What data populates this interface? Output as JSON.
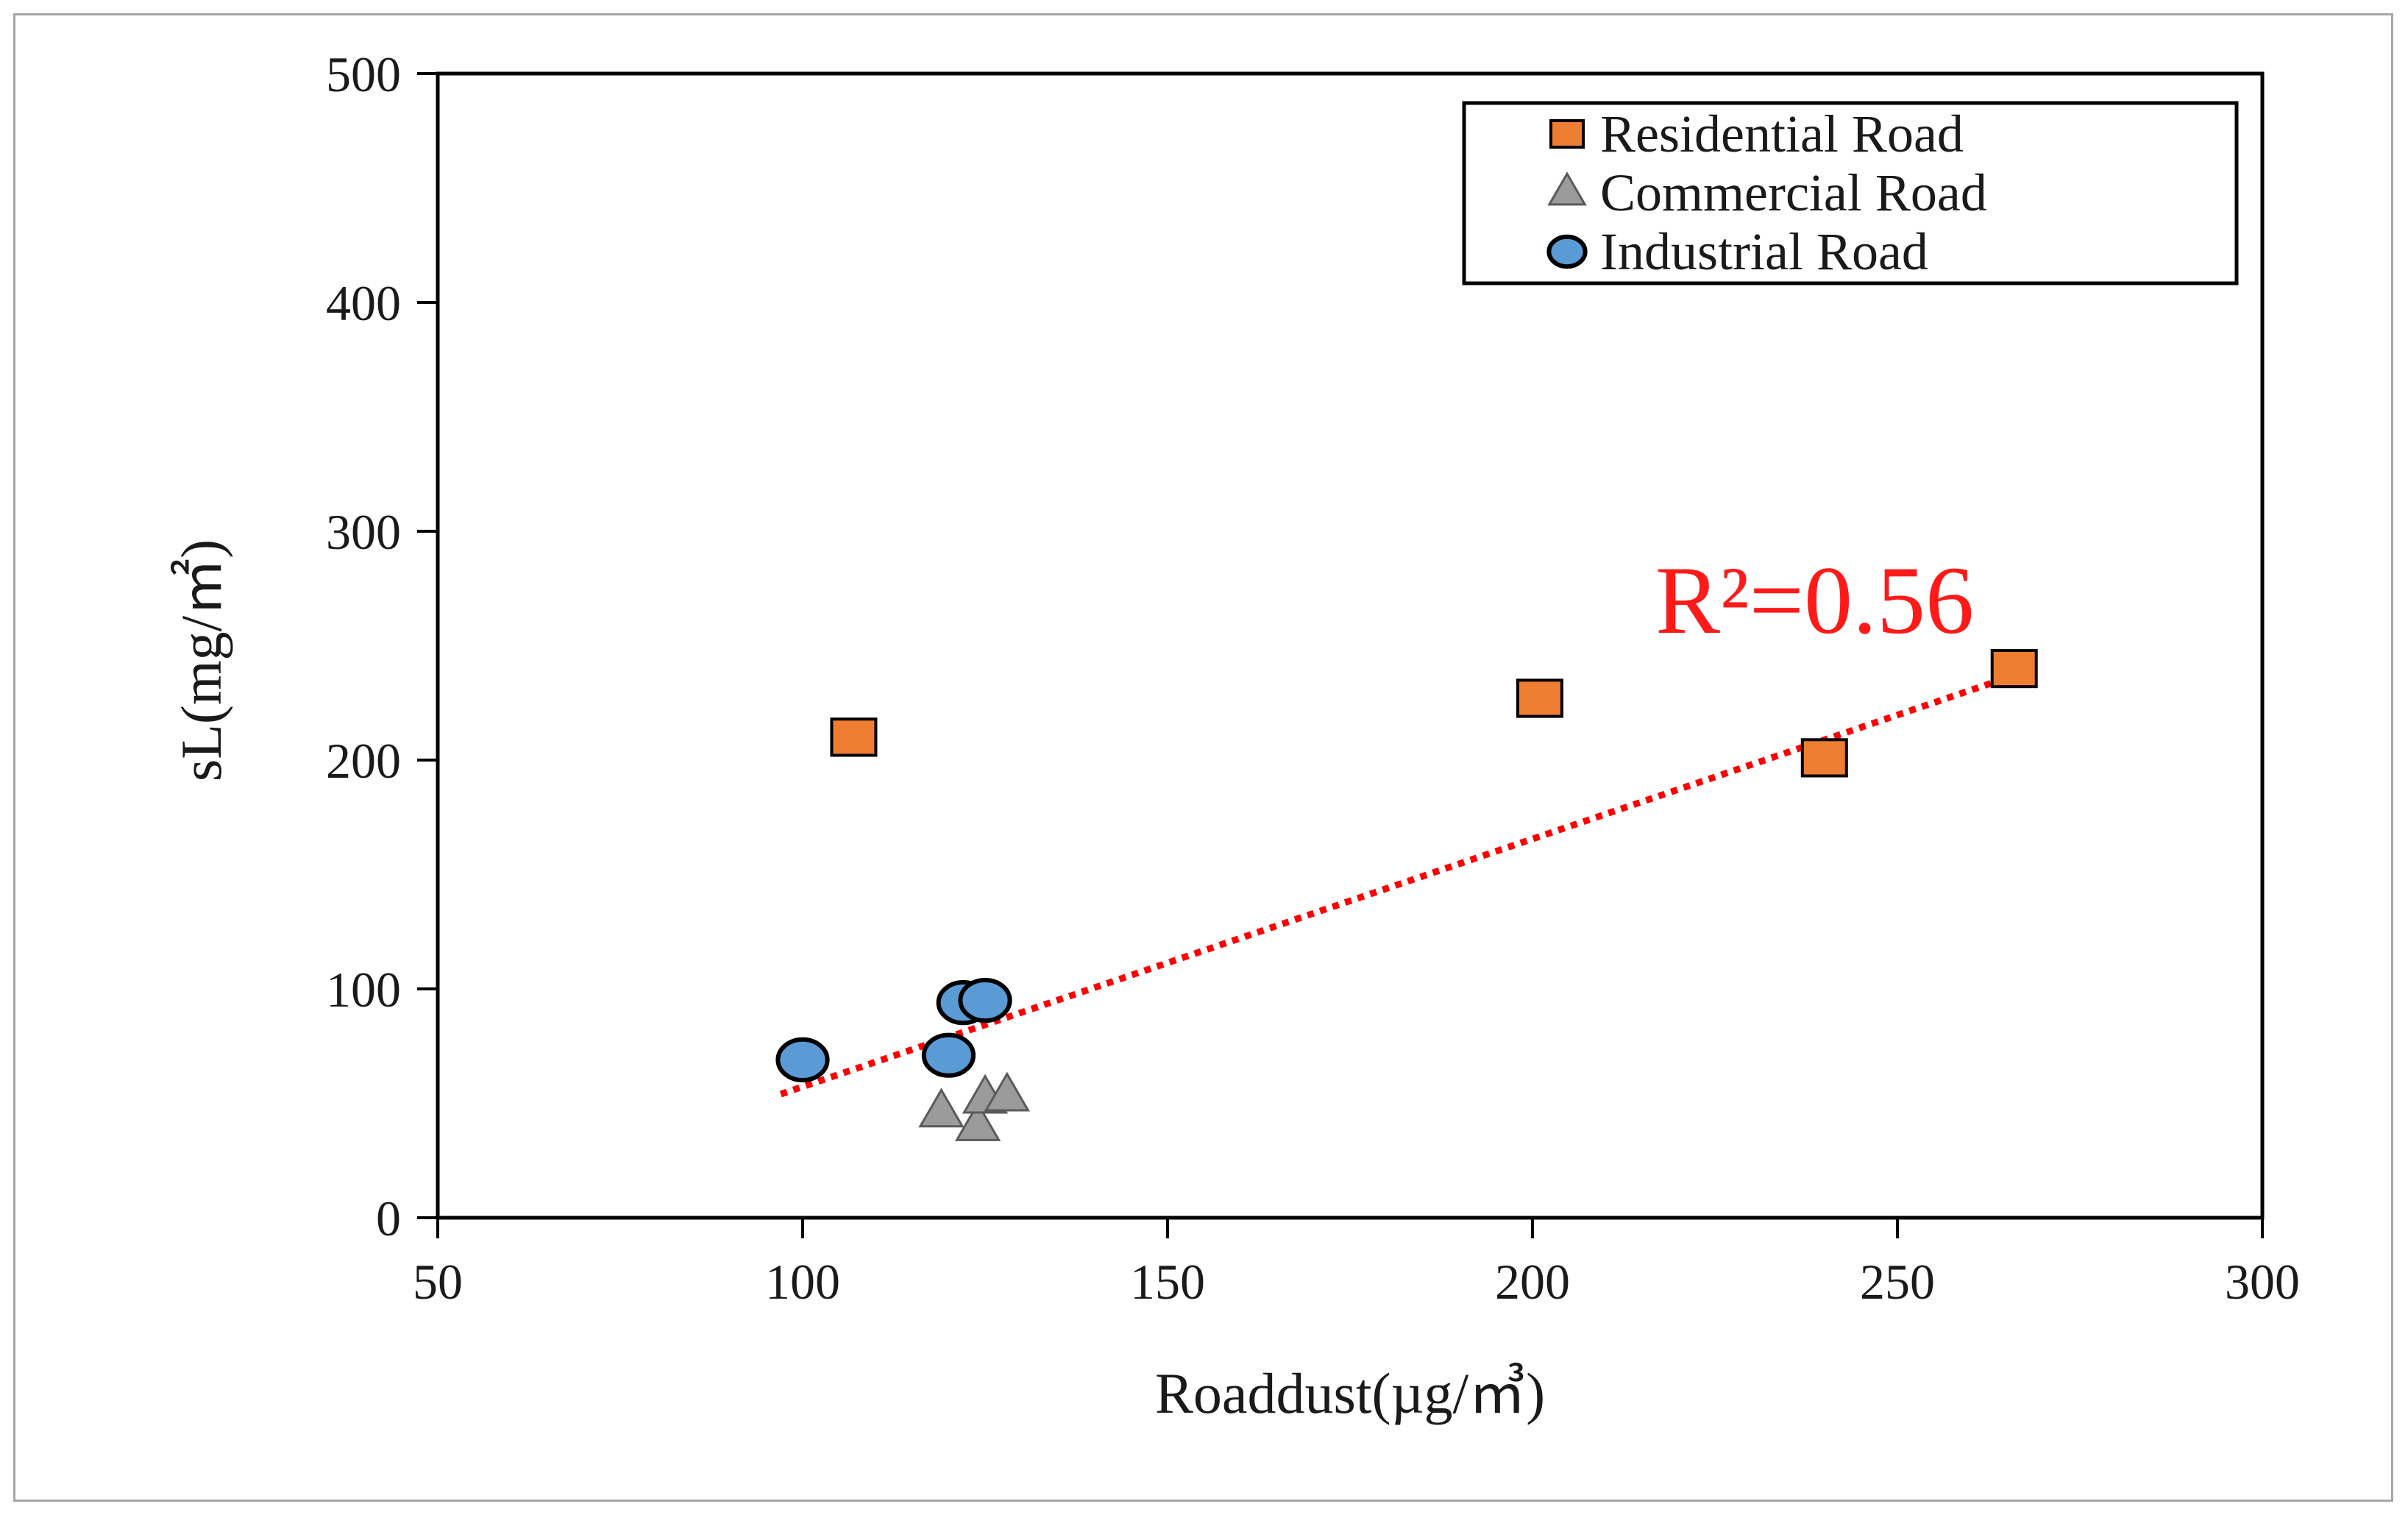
{
  "chart_data": {
    "type": "scatter",
    "xlabel": "Roaddust(µg/㎥)",
    "ylabel": "sL(mg/㎡)",
    "xlim": [
      50,
      300
    ],
    "ylim": [
      0,
      500
    ],
    "x_ticks": [
      50,
      100,
      150,
      200,
      250,
      300
    ],
    "y_ticks": [
      0,
      100,
      200,
      300,
      400,
      500
    ],
    "grid": false,
    "legend_position": "top-right",
    "series": [
      {
        "name": "Residential Road",
        "marker": "square",
        "color": "#ed7d31",
        "points": [
          [
            107,
            210
          ],
          [
            201,
            227
          ],
          [
            240,
            201
          ],
          [
            266,
            240
          ]
        ]
      },
      {
        "name": "Commercial Road",
        "marker": "triangle",
        "color": "#9b9b9b",
        "points": [
          [
            119,
            46
          ],
          [
            124,
            40
          ],
          [
            125,
            52
          ],
          [
            128,
            53
          ]
        ]
      },
      {
        "name": "Industrial Road",
        "marker": "circle",
        "color": "#5b9bd5",
        "points": [
          [
            100,
            69
          ],
          [
            120,
            71
          ],
          [
            122,
            94
          ],
          [
            125,
            95
          ]
        ]
      }
    ],
    "trendline": {
      "type": "linear",
      "color": "#ff0000",
      "style": "dotted",
      "x_range": [
        97,
        266
      ],
      "y_range": [
        54,
        237
      ],
      "label": "R²=0.56"
    }
  }
}
